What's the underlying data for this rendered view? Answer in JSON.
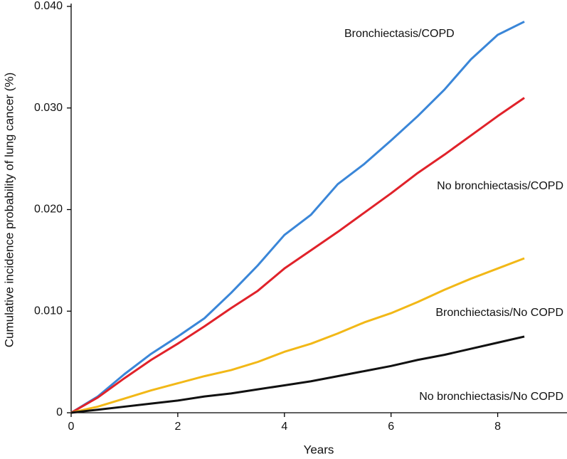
{
  "chart_data": {
    "type": "line",
    "y_label": "Cumulative incidence probability of lung cancer (%)",
    "x_label": "Years",
    "x": [
      0,
      0.5,
      1,
      1.5,
      2,
      2.5,
      3,
      3.5,
      4,
      4.5,
      5,
      5.5,
      6,
      6.5,
      7,
      7.5,
      8,
      8.5
    ],
    "series": [
      {
        "name": "Bronchiectasis/COPD",
        "color": "#3a86d8",
        "values": [
          0,
          0.0016,
          0.0038,
          0.0058,
          0.0075,
          0.0093,
          0.0118,
          0.0145,
          0.0175,
          0.0195,
          0.0225,
          0.0245,
          0.0268,
          0.0292,
          0.0318,
          0.0348,
          0.0372,
          0.0385
        ]
      },
      {
        "name": "No bronchiectasis/COPD",
        "color": "#e0222a",
        "values": [
          0,
          0.0015,
          0.0034,
          0.0052,
          0.0068,
          0.0085,
          0.0103,
          0.012,
          0.0142,
          0.016,
          0.0178,
          0.0197,
          0.0216,
          0.0236,
          0.0254,
          0.0273,
          0.0292,
          0.031
        ]
      },
      {
        "name": "Bronchiectasis/No COPD",
        "color": "#f2b817",
        "values": [
          0,
          0.0006,
          0.0014,
          0.0022,
          0.0029,
          0.0036,
          0.0042,
          0.005,
          0.006,
          0.0068,
          0.0078,
          0.0089,
          0.0098,
          0.0109,
          0.0121,
          0.0132,
          0.0142,
          0.0152
        ]
      },
      {
        "name": "No bronchiectasis/No COPD",
        "color": "#111111",
        "values": [
          0,
          0.0003,
          0.0006,
          0.0009,
          0.0012,
          0.0016,
          0.0019,
          0.0023,
          0.0027,
          0.0031,
          0.0036,
          0.0041,
          0.0046,
          0.0052,
          0.0057,
          0.0063,
          0.0069,
          0.0075
        ]
      }
    ],
    "xlim": [
      0,
      9.3
    ],
    "xticks": [
      0,
      2,
      4,
      6,
      8
    ],
    "ylim": [
      0,
      0.04
    ],
    "yticks": [
      0,
      {
        "value": 0.01,
        "label": "0.010"
      },
      {
        "value": 0.02,
        "label": "0.020"
      },
      {
        "value": 0.03,
        "label": "0.030"
      },
      {
        "value": 0.04,
        "label": "0.040"
      }
    ],
    "grid": false
  }
}
